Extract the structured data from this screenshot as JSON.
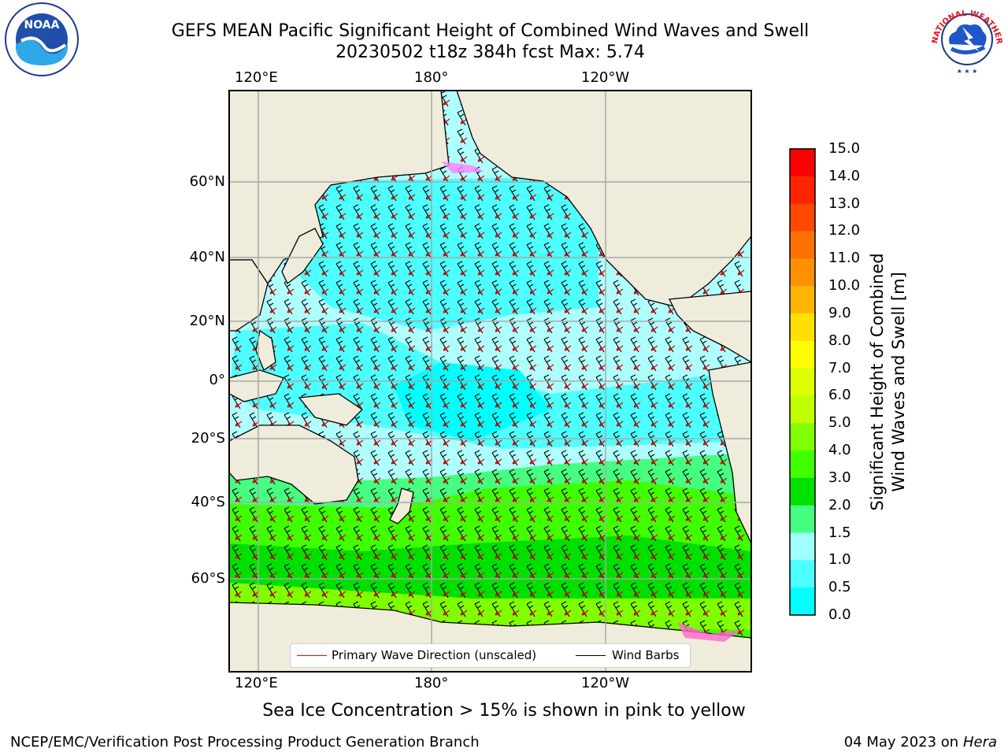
{
  "title": {
    "line1": "GEFS MEAN Pacific Significant Height of Combined Wind Waves and Swell",
    "line2": "20230502 t18z 384h fcst   Max: 5.74"
  },
  "map": {
    "top_lon_ticks": [
      "120°E",
      "180°",
      "120°W"
    ],
    "bottom_lon_ticks": [
      "120°E",
      "180°",
      "120°W"
    ],
    "lat_ticks": [
      "60°N",
      "40°N",
      "20°N",
      "0°",
      "20°S",
      "40°S",
      "60°S"
    ],
    "ocean_colors": {
      "low": "#1e90ff",
      "mid": "#00ffff",
      "calm": "#b0ffff",
      "high": "#00ff00",
      "mixed": "#46ff80"
    },
    "land_color": "#efecdb",
    "legend": {
      "wave_label": "Primary Wave Direction (unscaled)",
      "barb_label": "Wind Barbs",
      "wave_color": "#ff0000",
      "barb_color": "#000000"
    }
  },
  "colorbar": {
    "ticks": [
      "15.0",
      "14.0",
      "13.0",
      "12.0",
      "11.0",
      "10.0",
      "9.0",
      "8.0",
      "7.0",
      "6.0",
      "5.0",
      "4.0",
      "3.0",
      "2.0",
      "1.5",
      "1.0",
      "0.5",
      "0.0"
    ],
    "colors": [
      "#ff0000",
      "#ff2400",
      "#ff4800",
      "#ff7000",
      "#ff9000",
      "#ffb400",
      "#ffe000",
      "#ffff00",
      "#ddff00",
      "#c0ff00",
      "#80ff00",
      "#40ff00",
      "#00e000",
      "#46ff80",
      "#a0ffff",
      "#4dffff",
      "#00ffff",
      "#0078ff",
      "#0000ff"
    ],
    "label_line1": "Significant Height of Combined",
    "label_line2": "Wind Waves and Swell [m]"
  },
  "footer": {
    "sea_ice_note": "Sea Ice Concentration > 15% is shown in pink to yellow",
    "left": "NCEP/EMC/Verification Post Processing Product Generation Branch",
    "date": "04 May 2023 on",
    "machine": "Hera"
  },
  "logos": {
    "noaa": "NOAA",
    "nws": "NATIONAL WEATHER SERVICE"
  }
}
